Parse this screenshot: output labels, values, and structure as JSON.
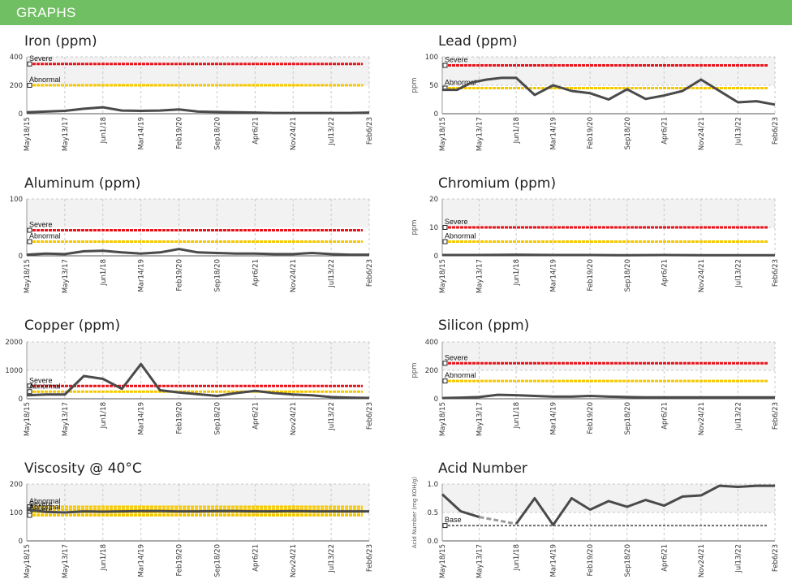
{
  "header": {
    "title": "GRAPHS"
  },
  "colors": {
    "severe": "#e8141c",
    "abnormal": "#f5c800",
    "base": "#6e6e6e",
    "line": "#4a4a4a",
    "grid": "#c8c8c8",
    "band": "#f2f2f2"
  },
  "x_ticks": [
    "May18/15",
    "May13/17",
    "Jun1/18",
    "Mar14/19",
    "Feb19/20",
    "Sep18/20",
    "Apr6/21",
    "Nov24/21",
    "Jul13/22",
    "Feb6/23"
  ],
  "chart_data": [
    {
      "id": "iron",
      "type": "line",
      "title": "Iron (ppm)",
      "ylabel": "",
      "ylim": [
        0,
        400
      ],
      "yticks": [
        0,
        200,
        400
      ],
      "grid": true,
      "references": [
        {
          "label": "Severe",
          "value": 350,
          "color": "#e8141c"
        },
        {
          "label": "Abnormal",
          "value": 200,
          "color": "#f5c800"
        }
      ],
      "series": [
        {
          "x": [
            0,
            0.5,
            1,
            1.5,
            2,
            2.5,
            3,
            3.5,
            4,
            4.5,
            5,
            5.5,
            6,
            6.5,
            7,
            7.5,
            8,
            8.5,
            9
          ],
          "y": [
            10,
            15,
            20,
            35,
            45,
            22,
            20,
            22,
            30,
            15,
            12,
            10,
            8,
            5,
            5,
            5,
            5,
            5,
            8
          ]
        }
      ]
    },
    {
      "id": "lead",
      "type": "line",
      "title": "Lead (ppm)",
      "ylabel": "ppm",
      "ylim": [
        0,
        100
      ],
      "yticks": [
        0,
        50,
        100
      ],
      "grid": true,
      "references": [
        {
          "label": "Severe",
          "value": 85,
          "color": "#e8141c"
        },
        {
          "label": "Abnormal",
          "value": 45,
          "color": "#f5c800"
        }
      ],
      "series": [
        {
          "x": [
            0,
            0.4,
            0.8,
            1.2,
            1.6,
            2,
            2.5,
            3,
            3.5,
            4,
            4.5,
            5,
            5.5,
            6,
            6.5,
            7,
            7.5,
            8,
            8.5,
            9
          ],
          "y": [
            42,
            42,
            55,
            60,
            63,
            63,
            33,
            50,
            40,
            36,
            25,
            43,
            26,
            32,
            40,
            60,
            40,
            20,
            22,
            16
          ]
        }
      ]
    },
    {
      "id": "aluminum",
      "type": "line",
      "title": "Aluminum (ppm)",
      "ylabel": "",
      "ylim": [
        0,
        100
      ],
      "yticks": [
        0,
        100
      ],
      "grid": true,
      "references": [
        {
          "label": "Severe",
          "value": 45,
          "color": "#e8141c"
        },
        {
          "label": "Abnormal",
          "value": 25,
          "color": "#f5c800"
        }
      ],
      "series": [
        {
          "x": [
            0,
            0.5,
            1,
            1.5,
            2,
            2.5,
            3,
            3.5,
            4,
            4.5,
            5,
            5.5,
            6,
            6.5,
            7,
            7.5,
            8,
            8.5,
            9
          ],
          "y": [
            2,
            4,
            3,
            8,
            9,
            6,
            4,
            6,
            12,
            6,
            5,
            4,
            4,
            3,
            3,
            5,
            3,
            2,
            2
          ]
        }
      ]
    },
    {
      "id": "chromium",
      "type": "line",
      "title": "Chromium (ppm)",
      "ylabel": "ppm",
      "ylim": [
        0,
        20
      ],
      "yticks": [
        0,
        10,
        20
      ],
      "grid": true,
      "references": [
        {
          "label": "Severe",
          "value": 10,
          "color": "#e8141c"
        },
        {
          "label": "Abnormal",
          "value": 5,
          "color": "#f5c800"
        }
      ],
      "series": [
        {
          "x": [
            0,
            1,
            2,
            3,
            4,
            5,
            6,
            7,
            8,
            9
          ],
          "y": [
            0.3,
            0.3,
            0.4,
            0.3,
            0.3,
            0.2,
            0.3,
            0.2,
            0.2,
            0.2
          ]
        }
      ]
    },
    {
      "id": "copper",
      "type": "line",
      "title": "Copper (ppm)",
      "ylabel": "",
      "ylim": [
        0,
        2000
      ],
      "yticks": [
        0,
        1000,
        2000
      ],
      "grid": true,
      "references": [
        {
          "label": "Severe",
          "value": 450,
          "color": "#e8141c"
        },
        {
          "label": "Abnormal",
          "value": 250,
          "color": "#f5c800"
        }
      ],
      "series": [
        {
          "x": [
            0,
            0.5,
            1,
            1.5,
            2,
            2.5,
            3,
            3.5,
            4,
            4.5,
            5,
            5.5,
            6,
            6.5,
            7,
            7.5,
            8,
            8.5,
            9
          ],
          "y": [
            120,
            150,
            150,
            800,
            700,
            350,
            1220,
            300,
            220,
            160,
            100,
            200,
            280,
            200,
            150,
            120,
            60,
            40,
            30
          ]
        }
      ]
    },
    {
      "id": "silicon",
      "type": "line",
      "title": "Silicon (ppm)",
      "ylabel": "ppm",
      "ylim": [
        0,
        400
      ],
      "yticks": [
        0,
        200,
        400
      ],
      "grid": true,
      "references": [
        {
          "label": "Severe",
          "value": 250,
          "color": "#e8141c"
        },
        {
          "label": "Abnormal",
          "value": 125,
          "color": "#f5c800"
        }
      ],
      "series": [
        {
          "x": [
            0,
            0.5,
            1,
            1.5,
            2,
            2.5,
            3,
            3.5,
            4,
            4.5,
            5,
            5.5,
            6,
            6.5,
            7,
            7.5,
            8,
            8.5,
            9
          ],
          "y": [
            5,
            8,
            12,
            28,
            25,
            20,
            15,
            15,
            20,
            15,
            12,
            10,
            10,
            10,
            10,
            10,
            10,
            10,
            10
          ]
        }
      ]
    },
    {
      "id": "viscosity",
      "type": "line",
      "title": "Viscosity @ 40°C",
      "ylabel": "",
      "ylim": [
        0,
        200
      ],
      "yticks": [
        0,
        100,
        200
      ],
      "grid": true,
      "references": [
        {
          "label": "Abnormal",
          "value": 120,
          "color": "#f5c800"
        },
        {
          "label": "Severe",
          "value": 110,
          "color": "#f5c800"
        },
        {
          "label": "Abnormal",
          "value": 100,
          "color": "#f5c800"
        },
        {
          "label": "Severe",
          "value": 90,
          "color": "#f5c800"
        }
      ],
      "series": [
        {
          "x": [
            0,
            0.5,
            1,
            1.5,
            2,
            2.5,
            3,
            3.5,
            4,
            4.5,
            5,
            5.5,
            6,
            6.5,
            7,
            7.5,
            8,
            8.5,
            9
          ],
          "y": [
            110,
            102,
            100,
            104,
            103,
            104,
            105,
            105,
            104,
            104,
            105,
            105,
            104,
            104,
            105,
            104,
            104,
            104,
            104
          ]
        }
      ]
    },
    {
      "id": "acid",
      "type": "line",
      "title": "Acid Number",
      "ylabel": "Acid Number (mg KOH/g)",
      "ylim": [
        0,
        1.0
      ],
      "yticks": [
        "0.0",
        "0.5",
        "1.0"
      ],
      "grid": true,
      "references": [
        {
          "label": "Base",
          "value": 0.27,
          "color": "#6e6e6e"
        }
      ],
      "series": [
        {
          "x": [
            0,
            0.5,
            1
          ],
          "y": [
            0.82,
            0.52,
            0.42
          ]
        },
        {
          "x": [
            1,
            2
          ],
          "y": [
            0.42,
            0.3
          ],
          "dashed": true
        },
        {
          "x": [
            2,
            2.5,
            3,
            3.5,
            4,
            4.5,
            5,
            5.5,
            6,
            6.5,
            7,
            7.5,
            8,
            8.5,
            9
          ],
          "y": [
            0.3,
            0.75,
            0.28,
            0.75,
            0.55,
            0.7,
            0.6,
            0.72,
            0.62,
            0.78,
            0.8,
            0.97,
            0.95,
            0.97,
            0.97
          ]
        }
      ]
    }
  ]
}
